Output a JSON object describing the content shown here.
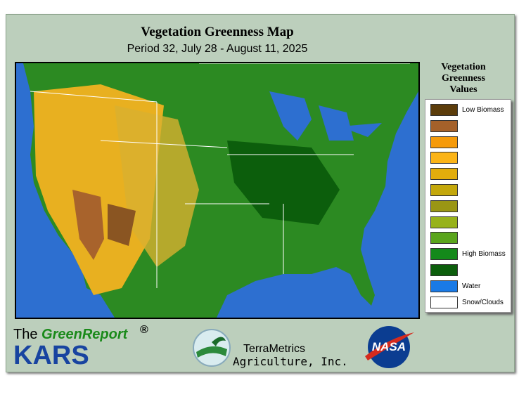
{
  "header": {
    "title": "Vegetation Greenness Map",
    "subtitle": "Period 32, July 28 - August 11, 2025"
  },
  "legend": {
    "title": "Vegetation Greenness Values",
    "items": [
      {
        "color": "#5c3d0b",
        "label": "Low Biomass"
      },
      {
        "color": "#a5612a"
      },
      {
        "color": "#f59a0a"
      },
      {
        "color": "#fbb417"
      },
      {
        "color": "#e2ad0c"
      },
      {
        "color": "#c4a80b"
      },
      {
        "color": "#9a9614"
      },
      {
        "color": "#97b21a"
      },
      {
        "color": "#5aa51c"
      },
      {
        "color": "#14891a",
        "label": "High Biomass"
      },
      {
        "color": "#0c5e0c"
      },
      {
        "color": "#1a7ae6",
        "label": "Water"
      },
      {
        "color": "#ffffff",
        "label": "Snow/Clouds"
      }
    ]
  },
  "footer": {
    "the": "The",
    "greenreport": "GreenReport",
    "reg": "®",
    "kars": "KARS",
    "terrametrics": "TerraMetrics",
    "agriculture": "Agriculture, Inc.",
    "nasa": "NASA"
  }
}
